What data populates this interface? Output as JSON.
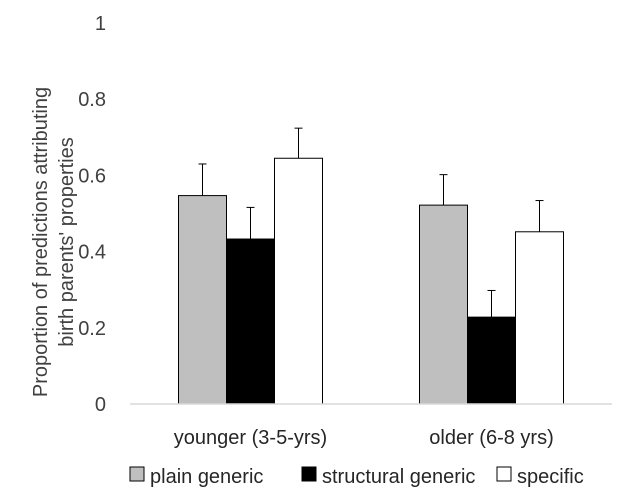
{
  "chart_data": {
    "type": "bar",
    "title": "",
    "xlabel": "",
    "ylabel_lines": [
      "Proportion of predictions attributing",
      "birth parents' properties"
    ],
    "categories": [
      "younger (3-5-yrs)",
      "older (6-8 yrs)"
    ],
    "ylim": [
      0,
      1
    ],
    "yticks": [
      "0",
      "0.2",
      "0.4",
      "0.6",
      "0.8",
      "1"
    ],
    "grid": false,
    "legend_position": "bottom",
    "series": [
      {
        "name": "plain generic",
        "values": [
          0.547,
          0.522
        ],
        "errors": [
          0.083,
          0.08
        ],
        "color": "#bfbfbf"
      },
      {
        "name": "structural generic",
        "values": [
          0.433,
          0.228
        ],
        "errors": [
          0.083,
          0.07
        ],
        "color": "#000000"
      },
      {
        "name": "specific",
        "values": [
          0.645,
          0.452
        ],
        "errors": [
          0.079,
          0.082
        ],
        "color": "#ffffff"
      }
    ]
  }
}
